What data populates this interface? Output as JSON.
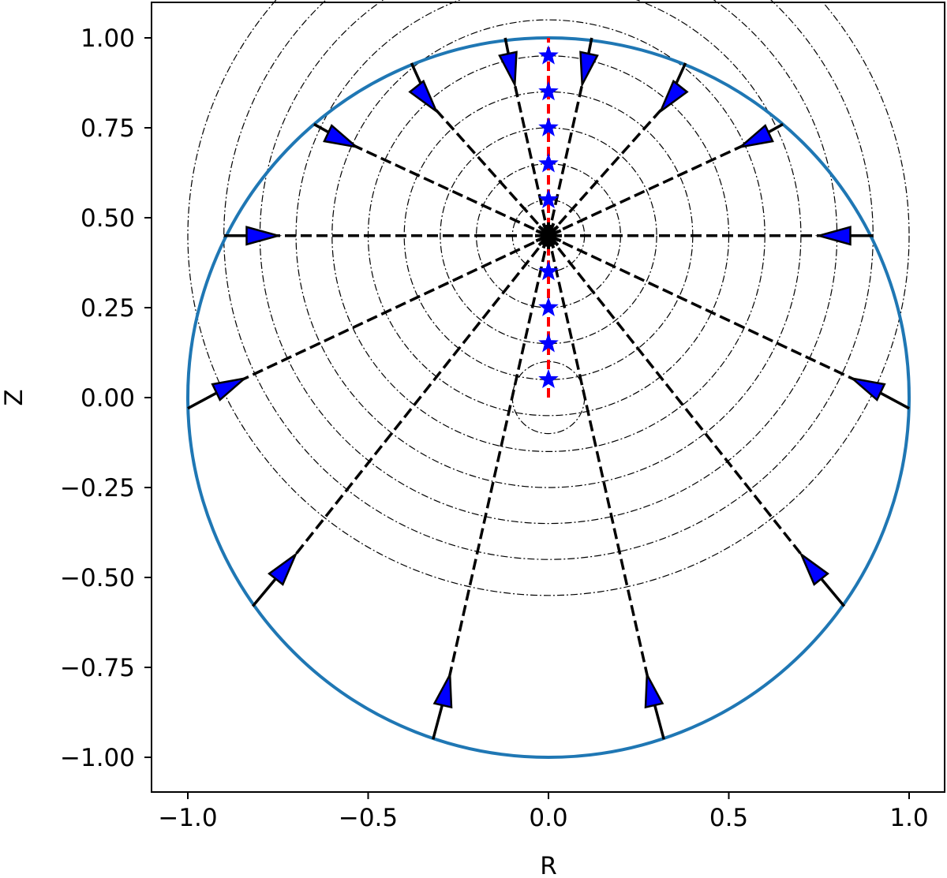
{
  "chart_data": {
    "type": "scatter",
    "title": "",
    "xlabel": "R",
    "ylabel": "Z",
    "xlim": [
      -1.1,
      1.1
    ],
    "ylim": [
      -1.1,
      1.1
    ],
    "x_ticks": [
      -1.0,
      -0.5,
      0.0,
      0.5,
      1.0
    ],
    "x_tick_labels": [
      "−1.0",
      "−0.5",
      "0.0",
      "0.5",
      "1.0"
    ],
    "y_ticks": [
      1.0,
      0.75,
      0.5,
      0.25,
      0.0,
      -0.25,
      -0.5,
      -0.75,
      -1.0
    ],
    "y_tick_labels": [
      "1.00",
      "0.75",
      "0.50",
      "0.25",
      "0.00",
      "−0.25",
      "−0.50",
      "−0.75",
      "−1.00"
    ],
    "grid": false,
    "boundary_circle": {
      "center": [
        0,
        0
      ],
      "radius": 1.0,
      "color": "#1f77b4"
    },
    "contour_circles": {
      "center": [
        0,
        0.45
      ],
      "radii": [
        0.1,
        0.2,
        0.3,
        0.4,
        0.5,
        0.6,
        0.7,
        0.8,
        0.9,
        1.0
      ]
    },
    "inner_circle": {
      "center": [
        0,
        0
      ],
      "radius": 0.1
    },
    "focus_point": {
      "x": 0.0,
      "y": 0.45,
      "color": "#000000"
    },
    "axis_line": {
      "x": 0.0,
      "y_range": [
        0.0,
        1.0
      ],
      "color": "#ff0000"
    },
    "star_points": {
      "x": [
        0,
        0,
        0,
        0,
        0,
        0,
        0,
        0,
        0
      ],
      "y": [
        0.95,
        0.85,
        0.75,
        0.65,
        0.55,
        0.35,
        0.25,
        0.15,
        0.05
      ],
      "color": "#0000ff"
    },
    "rays": [
      {
        "end": [
          0.12,
          1.0
        ],
        "arrow": [
          0.1,
          0.9
        ]
      },
      {
        "end": [
          0.38,
          0.93
        ],
        "arrow": [
          0.33,
          0.82
        ]
      },
      {
        "end": [
          0.65,
          0.76
        ],
        "arrow": [
          0.56,
          0.71
        ]
      },
      {
        "end": [
          0.9,
          0.45
        ],
        "arrow": [
          0.78,
          0.45
        ]
      },
      {
        "end": [
          1.0,
          -0.03
        ],
        "arrow": [
          0.87,
          0.04
        ]
      },
      {
        "end": [
          0.82,
          -0.58
        ],
        "arrow": [
          0.72,
          -0.46
        ]
      },
      {
        "end": [
          0.32,
          -0.95
        ],
        "arrow": [
          0.28,
          -0.8
        ]
      },
      {
        "end": [
          -0.32,
          -0.95
        ],
        "arrow": [
          -0.28,
          -0.8
        ]
      },
      {
        "end": [
          -0.82,
          -0.58
        ],
        "arrow": [
          -0.72,
          -0.46
        ]
      },
      {
        "end": [
          -1.0,
          -0.03
        ],
        "arrow": [
          -0.87,
          0.04
        ]
      },
      {
        "end": [
          -0.9,
          0.45
        ],
        "arrow": [
          -0.78,
          0.45
        ]
      },
      {
        "end": [
          -0.65,
          0.76
        ],
        "arrow": [
          -0.56,
          0.71
        ]
      },
      {
        "end": [
          -0.38,
          0.93
        ],
        "arrow": [
          -0.33,
          0.82
        ]
      },
      {
        "end": [
          -0.12,
          1.0
        ],
        "arrow": [
          -0.1,
          0.9
        ]
      }
    ]
  }
}
